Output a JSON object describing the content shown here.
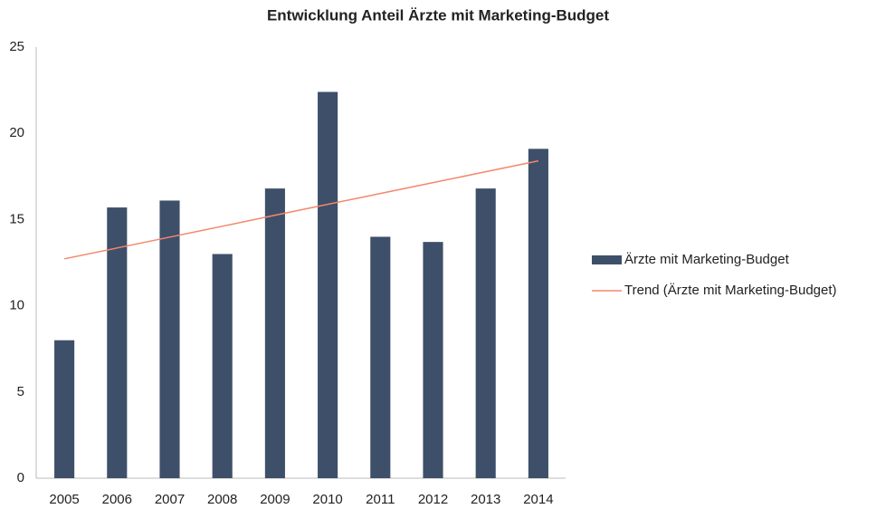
{
  "chart_data": {
    "type": "bar",
    "title": "Entwicklung Anteil Ärzte mit Marketing-Budget",
    "categories": [
      "2005",
      "2006",
      "2007",
      "2008",
      "2009",
      "2010",
      "2011",
      "2012",
      "2013",
      "2014"
    ],
    "series": [
      {
        "name": "Ärzte mit Marketing-Budget",
        "type": "bar",
        "color": "#3e4f69",
        "values": [
          8,
          15.7,
          16.1,
          13,
          16.8,
          22.4,
          14,
          13.7,
          16.8,
          19.1
        ]
      },
      {
        "name": "Trend (Ärzte mit Marketing-Budget)",
        "type": "line",
        "color": "#f4876b",
        "values": [
          12.72,
          13.35,
          13.98,
          14.61,
          15.25,
          15.88,
          16.51,
          17.14,
          17.77,
          18.4
        ]
      }
    ],
    "ylim": [
      0,
      25
    ],
    "yticks": [
      0,
      5,
      10,
      15,
      20,
      25
    ],
    "grid": false,
    "legend": "right"
  }
}
